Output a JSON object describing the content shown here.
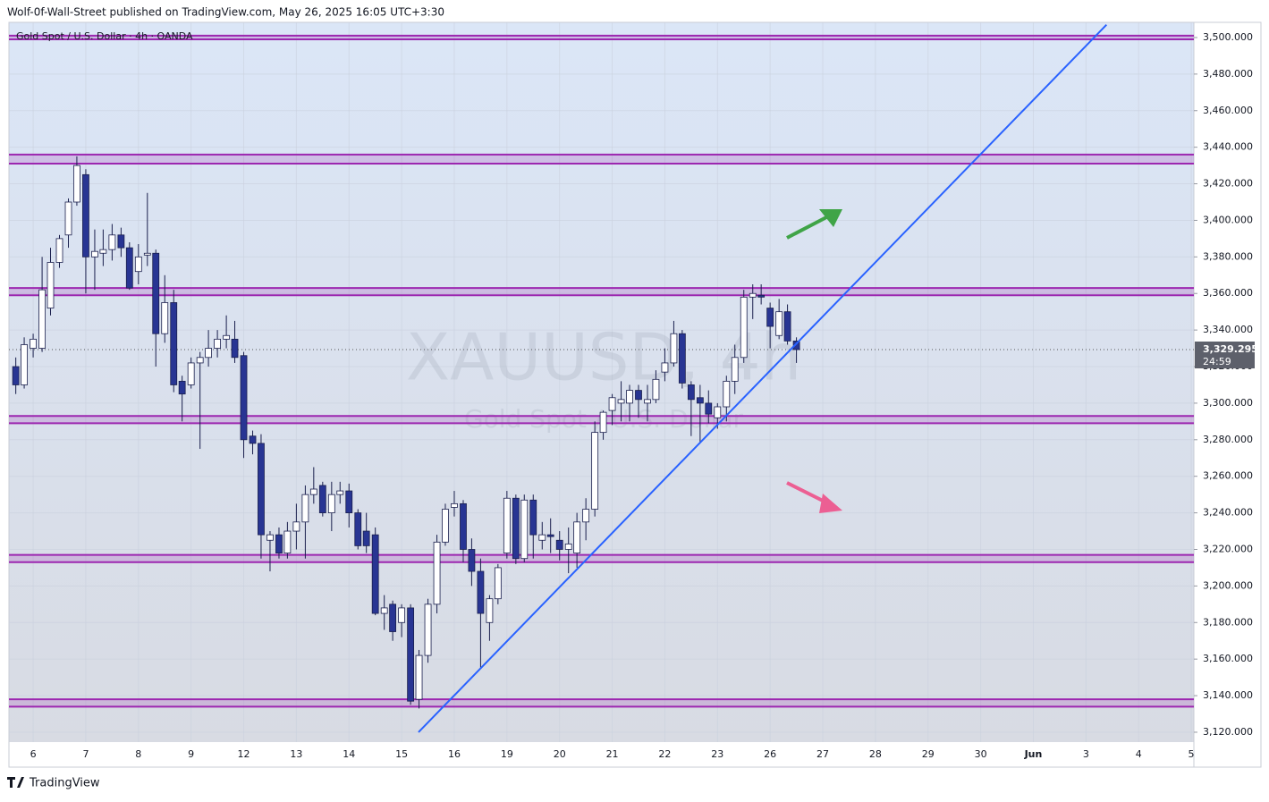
{
  "header": "Wolf-0f-Wall-Street published on TradingView.com, May 26, 2025 16:05 UTC+3:30",
  "footer": "TradingView",
  "chart_data": {
    "type": "candlestick",
    "title": "Gold Spot / U.S. Dollar · 4h · OANDA",
    "watermark": "XAUUSD, 4h",
    "watermark_subtitle": "Gold Spot / U.S. Dollar",
    "x": [
      -0.33,
      -0.17,
      0,
      0.17,
      0.33,
      0.5,
      0.67,
      0.83,
      1,
      1.17,
      1.33,
      1.5,
      1.67,
      1.83,
      2,
      2.17,
      2.33,
      2.5,
      2.67,
      2.83,
      3,
      3.17,
      3.33,
      3.5,
      3.67,
      3.83,
      4,
      4.17,
      4.33,
      4.5,
      4.67,
      4.83,
      5,
      5.17,
      5.33,
      5.5,
      5.67,
      5.83,
      6,
      6.17,
      6.33,
      6.5,
      6.67,
      6.83,
      7,
      7.17,
      7.33,
      7.5,
      7.67,
      7.83,
      8,
      8.17,
      8.33,
      8.5,
      8.67,
      8.83,
      9,
      9.17,
      9.33,
      9.5,
      9.67,
      9.83,
      10,
      10.17,
      10.33,
      10.5,
      10.67,
      10.83,
      11,
      11.17,
      11.33,
      11.5,
      11.67,
      11.83,
      12,
      12.17,
      12.33,
      12.5,
      12.67,
      12.83,
      13,
      13.17,
      13.33,
      13.5,
      13.67,
      13.83,
      14,
      14.17,
      14.33,
      14.5
    ],
    "open": [
      3320,
      3310,
      3330,
      3330,
      3352,
      3377,
      3392,
      3410,
      3425,
      3380,
      3382,
      3384,
      3392,
      3385,
      3372,
      3381,
      3382,
      3338,
      3355,
      3312,
      3310,
      3322,
      3325,
      3330,
      3335,
      3335,
      3326,
      3282,
      3278,
      3225,
      3228,
      3218,
      3230,
      3235,
      3250,
      3255,
      3240,
      3250,
      3252,
      3240,
      3230,
      3228,
      3185,
      3190,
      3180,
      3188,
      3138,
      3162,
      3190,
      3224,
      3243,
      3245,
      3220,
      3208,
      3180,
      3193,
      3218,
      3248,
      3215,
      3247,
      3225,
      3228,
      3225,
      3220,
      3218,
      3235,
      3242,
      3284,
      3296,
      3300,
      3300,
      3307,
      3300,
      3302,
      3317,
      3322,
      3338,
      3310,
      3303,
      3300,
      3292,
      3298,
      3312,
      3325,
      3358,
      3359,
      3352,
      3337,
      3350,
      3334
    ],
    "high": [
      3325,
      3336,
      3338,
      3380,
      3385,
      3392,
      3412,
      3435,
      3428,
      3395,
      3395,
      3398,
      3396,
      3388,
      3387,
      3415,
      3384,
      3370,
      3362,
      3315,
      3325,
      3328,
      3340,
      3340,
      3348,
      3345,
      3328,
      3285,
      3283,
      3230,
      3232,
      3235,
      3245,
      3255,
      3265,
      3257,
      3257,
      3257,
      3256,
      3242,
      3240,
      3232,
      3195,
      3192,
      3190,
      3190,
      3165,
      3193,
      3228,
      3245,
      3252,
      3247,
      3226,
      3215,
      3195,
      3212,
      3252,
      3250,
      3250,
      3250,
      3235,
      3237,
      3230,
      3232,
      3240,
      3248,
      3290,
      3296,
      3305,
      3312,
      3310,
      3310,
      3310,
      3318,
      3330,
      3345,
      3340,
      3312,
      3310,
      3307,
      3300,
      3315,
      3332,
      3362,
      3365,
      3365,
      3355,
      3357,
      3354,
      3336
    ],
    "low": [
      3305,
      3308,
      3325,
      3328,
      3348,
      3374,
      3385,
      3408,
      3360,
      3362,
      3375,
      3378,
      3380,
      3362,
      3365,
      3375,
      3320,
      3333,
      3306,
      3290,
      3308,
      3275,
      3320,
      3325,
      3330,
      3322,
      3270,
      3272,
      3215,
      3208,
      3215,
      3215,
      3220,
      3215,
      3245,
      3238,
      3230,
      3245,
      3232,
      3220,
      3218,
      3184,
      3176,
      3170,
      3172,
      3135,
      3133,
      3158,
      3185,
      3222,
      3238,
      3213,
      3200,
      3155,
      3170,
      3190,
      3215,
      3212,
      3213,
      3215,
      3220,
      3218,
      3214,
      3207,
      3210,
      3225,
      3238,
      3280,
      3288,
      3290,
      3290,
      3292,
      3290,
      3300,
      3312,
      3320,
      3308,
      3282,
      3278,
      3289,
      3286,
      3290,
      3305,
      3322,
      3346,
      3354,
      3330,
      3335,
      3332,
      3322
    ],
    "close": [
      3310,
      3332,
      3335,
      3362,
      3377,
      3390,
      3410,
      3430,
      3380,
      3383,
      3384,
      3392,
      3385,
      3363,
      3380,
      3382,
      3338,
      3355,
      3310,
      3305,
      3322,
      3325,
      3330,
      3335,
      3337,
      3325,
      3280,
      3278,
      3228,
      3228,
      3218,
      3230,
      3235,
      3250,
      3253,
      3240,
      3250,
      3252,
      3240,
      3222,
      3222,
      3185,
      3188,
      3175,
      3188,
      3137,
      3162,
      3190,
      3224,
      3242,
      3245,
      3220,
      3208,
      3185,
      3193,
      3210,
      3248,
      3215,
      3247,
      3228,
      3228,
      3227,
      3220,
      3223,
      3235,
      3242,
      3284,
      3295,
      3303,
      3302,
      3307,
      3302,
      3302,
      3313,
      3322,
      3338,
      3311,
      3302,
      3300,
      3294,
      3298,
      3312,
      3325,
      3358,
      3360,
      3358,
      3342,
      3350,
      3334,
      3329.295
    ],
    "up_color": "#ffffff",
    "down_color": "#283593",
    "wick_color": "#1a1f4d",
    "xlim": [
      -0.46,
      22.05
    ],
    "xticks": [
      {
        "value": 0,
        "label": "6"
      },
      {
        "value": 1,
        "label": "7"
      },
      {
        "value": 2,
        "label": "8"
      },
      {
        "value": 3,
        "label": "9"
      },
      {
        "value": 4,
        "label": "12"
      },
      {
        "value": 5,
        "label": "13"
      },
      {
        "value": 6,
        "label": "14"
      },
      {
        "value": 7,
        "label": "15"
      },
      {
        "value": 8,
        "label": "16"
      },
      {
        "value": 9,
        "label": "19"
      },
      {
        "value": 10,
        "label": "20"
      },
      {
        "value": 11,
        "label": "21"
      },
      {
        "value": 12,
        "label": "22"
      },
      {
        "value": 13,
        "label": "23"
      },
      {
        "value": 14,
        "label": "26"
      },
      {
        "value": 15,
        "label": "27"
      },
      {
        "value": 16,
        "label": "28"
      },
      {
        "value": 17,
        "label": "29"
      },
      {
        "value": 18,
        "label": "30"
      },
      {
        "value": 19,
        "label": "Jun"
      },
      {
        "value": 20,
        "label": "3"
      },
      {
        "value": 21,
        "label": "4"
      },
      {
        "value": 22,
        "label": "5"
      }
    ],
    "ylim": [
      3114.6,
      3508.3
    ],
    "yticks": [
      {
        "value": 3120,
        "label": "3,120.000"
      },
      {
        "value": 3140,
        "label": "3,140.000"
      },
      {
        "value": 3160,
        "label": "3,160.000"
      },
      {
        "value": 3180,
        "label": "3,180.000"
      },
      {
        "value": 3200,
        "label": "3,200.000"
      },
      {
        "value": 3220,
        "label": "3,220.000"
      },
      {
        "value": 3240,
        "label": "3,240.000"
      },
      {
        "value": 3260,
        "label": "3,260.000"
      },
      {
        "value": 3280,
        "label": "3,280.000"
      },
      {
        "value": 3300,
        "label": "3,300.000"
      },
      {
        "value": 3320,
        "label": "3,320.000"
      },
      {
        "value": 3340,
        "label": "3,340.000"
      },
      {
        "value": 3360,
        "label": "3,360.000"
      },
      {
        "value": 3380,
        "label": "3,380.000"
      },
      {
        "value": 3400,
        "label": "3,400.000"
      },
      {
        "value": 3420,
        "label": "3,420.000"
      },
      {
        "value": 3440,
        "label": "3,440.000"
      },
      {
        "value": 3460,
        "label": "3,460.000"
      },
      {
        "value": 3480,
        "label": "3,480.000"
      },
      {
        "value": 3500,
        "label": "3,500.000"
      }
    ],
    "grid": true,
    "zones": [
      {
        "low": 3499,
        "high": 3501
      },
      {
        "low": 3431,
        "high": 3436
      },
      {
        "low": 3359,
        "high": 3363
      },
      {
        "low": 3289,
        "high": 3293
      },
      {
        "low": 3213,
        "high": 3217
      },
      {
        "low": 3134,
        "high": 3138
      }
    ],
    "zone_color": "#9c27b0",
    "trendline": {
      "x": [
        7.32,
        20.39
      ],
      "y": [
        3120,
        3507
      ],
      "color": "#2962ff"
    },
    "last_price": {
      "value": 3329.295,
      "label": "3,329.295"
    },
    "countdown": "24:59"
  }
}
